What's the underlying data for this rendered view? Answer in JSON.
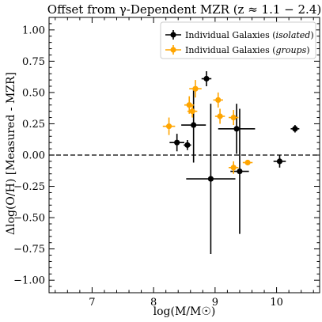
{
  "chart_data": {
    "type": "scatter",
    "title": "Offset from γ-Dependent MZR (z ≈ 1.1 − 2.4)",
    "xlabel": "log(M/M☉)",
    "ylabel": "Δlog(O/H) [Measured - MZR]",
    "xlim": [
      6.3,
      10.7
    ],
    "ylim": [
      -1.1,
      1.1
    ],
    "xticks": [
      7,
      8,
      9,
      10
    ],
    "yticks": [
      1.0,
      0.75,
      0.5,
      0.25,
      0.0,
      -0.25,
      -0.5,
      -0.75,
      -1.0
    ],
    "ytick_labels": [
      "1.00",
      "0.75",
      "0.50",
      "0.25",
      "0.00",
      "−0.25",
      "−0.50",
      "−0.75",
      "−1.00"
    ],
    "reference_line": {
      "y": 0.0,
      "style": "dashed"
    },
    "grid": false,
    "legend_position": "top-right",
    "series": [
      {
        "name": "Individual Galaxies (isolated)",
        "legend_prefix": "Individual Galaxies (",
        "legend_italic": "isolated",
        "legend_suffix": ")",
        "color": "#000000",
        "points": [
          {
            "x": 8.86,
            "y": 0.61,
            "xerr": 0.08,
            "yerr": 0.06
          },
          {
            "x": 8.38,
            "y": 0.1,
            "xerr": 0.12,
            "yerr": 0.07
          },
          {
            "x": 8.55,
            "y": 0.08,
            "xerr": 0.06,
            "yerr": 0.04
          },
          {
            "x": 8.65,
            "y": 0.24,
            "xerr": 0.2,
            "yerr": 0.3
          },
          {
            "x": 8.93,
            "y": -0.19,
            "xerr": 0.4,
            "yerr": 0.6
          },
          {
            "x": 9.35,
            "y": 0.21,
            "xerr": 0.3,
            "yerr": 0.2
          },
          {
            "x": 9.4,
            "y": -0.13,
            "xerr": 0.15,
            "yerr": 0.5
          },
          {
            "x": 10.05,
            "y": -0.05,
            "xerr": 0.1,
            "yerr": 0.05
          },
          {
            "x": 10.3,
            "y": 0.21,
            "xerr": 0.07,
            "yerr": 0.03
          }
        ]
      },
      {
        "name": "Individual Galaxies (groups)",
        "legend_prefix": "Individual Galaxies (",
        "legend_italic": "groups",
        "legend_suffix": ")",
        "color": "#FFA500",
        "points": [
          {
            "x": 8.68,
            "y": 0.53,
            "xerr": 0.1,
            "yerr": 0.07
          },
          {
            "x": 8.58,
            "y": 0.4,
            "xerr": 0.08,
            "yerr": 0.07
          },
          {
            "x": 8.63,
            "y": 0.35,
            "xerr": 0.08,
            "yerr": 0.05
          },
          {
            "x": 8.25,
            "y": 0.23,
            "xerr": 0.1,
            "yerr": 0.07
          },
          {
            "x": 9.05,
            "y": 0.44,
            "xerr": 0.08,
            "yerr": 0.06
          },
          {
            "x": 9.08,
            "y": 0.31,
            "xerr": 0.08,
            "yerr": 0.06
          },
          {
            "x": 9.3,
            "y": 0.3,
            "xerr": 0.08,
            "yerr": 0.06
          },
          {
            "x": 9.3,
            "y": -0.1,
            "xerr": 0.08,
            "yerr": 0.05
          },
          {
            "x": 9.53,
            "y": -0.06,
            "xerr": 0.08,
            "yerr": 0.02
          }
        ]
      }
    ]
  }
}
